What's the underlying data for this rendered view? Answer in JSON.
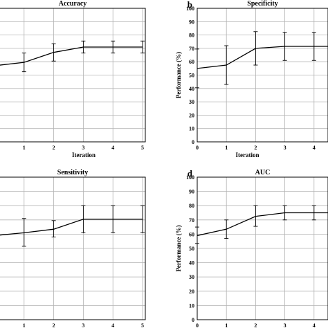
{
  "chart_data": [
    {
      "type": "line",
      "panel": "",
      "title": "Accuracy",
      "xlabel": "Iteration",
      "ylabel": "",
      "x": [
        0,
        1,
        2,
        3,
        4,
        5
      ],
      "ylim": [
        0,
        100
      ],
      "xlim": [
        0,
        5
      ],
      "yticks": [],
      "xticks": [
        "1",
        "2",
        "3",
        "4",
        "5"
      ],
      "grid": true,
      "series": [
        {
          "values": [
            57,
            59.5,
            67,
            71,
            71,
            71
          ],
          "err_low": [
            57,
            52.5,
            60.5,
            66.5,
            66.5,
            66.5
          ],
          "err_high": [
            57,
            66.5,
            73.5,
            75.5,
            75.5,
            75.5
          ]
        }
      ]
    },
    {
      "type": "line",
      "panel": "b",
      "title": "Specificity",
      "xlabel": "Iteration",
      "ylabel": "Performance (%)",
      "x": [
        0,
        1,
        2,
        3,
        4,
        5
      ],
      "ylim": [
        0,
        100
      ],
      "xlim": [
        0,
        4.4
      ],
      "yticks": [
        "0",
        "10",
        "20",
        "30",
        "40",
        "50",
        "60",
        "70",
        "80",
        "90",
        "100"
      ],
      "xticks": [
        "0",
        "1",
        "2",
        "3",
        "4"
      ],
      "grid": true,
      "series": [
        {
          "values": [
            55,
            57.5,
            70,
            71.5,
            71.5,
            71.5
          ],
          "err_low": [
            40.5,
            43,
            57.5,
            61,
            61,
            61
          ],
          "err_high": [
            69.5,
            72,
            82.5,
            82,
            82,
            82
          ]
        }
      ]
    },
    {
      "type": "line",
      "panel": "",
      "title": "Sensitivity",
      "xlabel": "Iteration",
      "ylabel": "",
      "x": [
        0,
        1,
        2,
        3,
        4,
        5
      ],
      "ylim": [
        0,
        100
      ],
      "xlim": [
        0,
        5
      ],
      "yticks": [],
      "xticks": [
        "1",
        "2",
        "3",
        "4",
        "5"
      ],
      "grid": true,
      "series": [
        {
          "values": [
            59,
            61,
            63.5,
            70.5,
            70.5,
            70.5
          ],
          "err_low": [
            59,
            51.5,
            58,
            61,
            61,
            61
          ],
          "err_high": [
            59,
            71,
            69.5,
            80,
            80,
            80
          ]
        }
      ]
    },
    {
      "type": "line",
      "panel": "d",
      "title": "AUC",
      "xlabel": "Iteration",
      "ylabel": "Performance (%)",
      "x": [
        0,
        1,
        2,
        3,
        4,
        5
      ],
      "ylim": [
        0,
        100
      ],
      "xlim": [
        0,
        4.4
      ],
      "yticks": [
        "0",
        "10",
        "20",
        "30",
        "40",
        "50",
        "60",
        "70",
        "80",
        "90",
        "100"
      ],
      "xticks": [
        "0",
        "1",
        "2",
        "3",
        "4"
      ],
      "grid": true,
      "series": [
        {
          "values": [
            59,
            63.5,
            72.5,
            75,
            75,
            75
          ],
          "err_low": [
            53.5,
            57,
            65.5,
            70,
            70,
            70
          ],
          "err_high": [
            65,
            70,
            80,
            80,
            80,
            80
          ]
        }
      ]
    }
  ]
}
